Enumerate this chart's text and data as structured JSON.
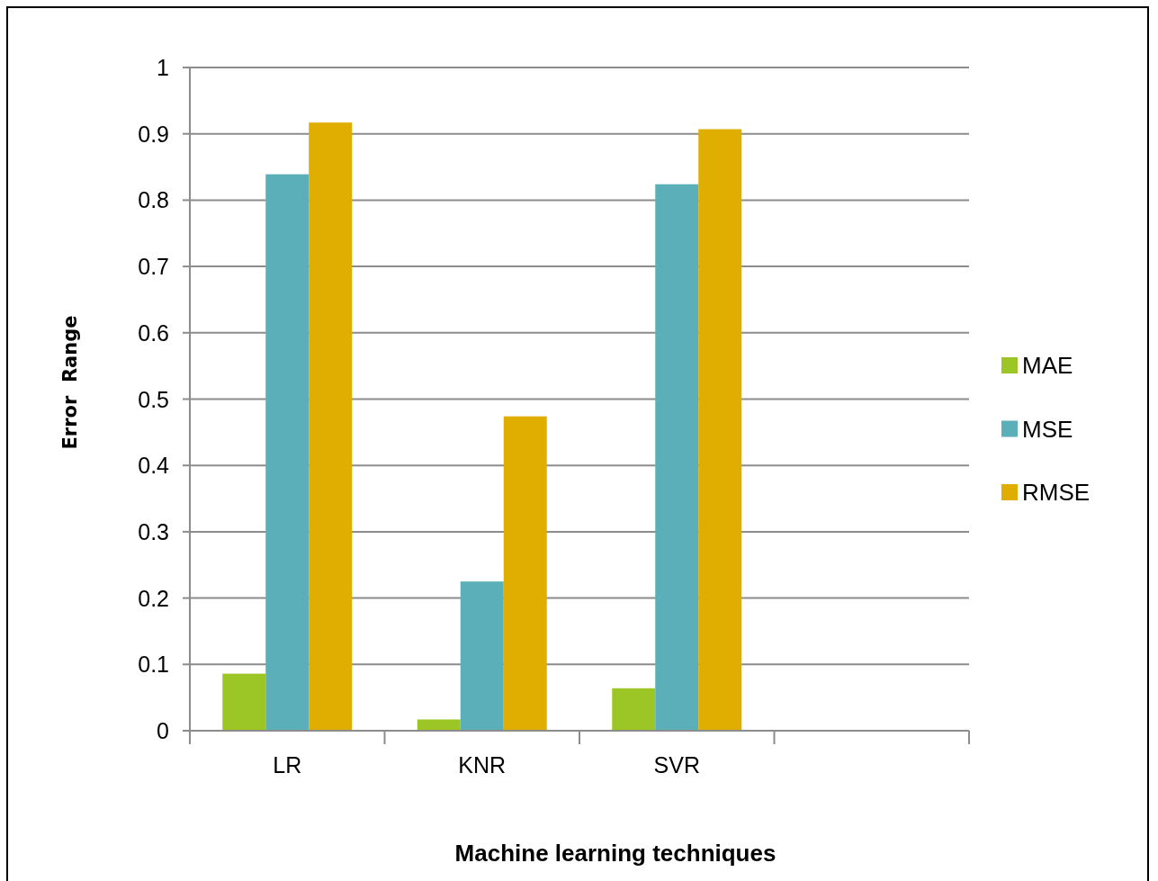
{
  "chart_data": {
    "type": "bar",
    "categories": [
      "LR",
      "KNR",
      "SVR",
      null
    ],
    "series": [
      {
        "name": "MAE",
        "color": "#9bc625",
        "values": [
          0.086,
          0.017,
          0.064,
          null
        ]
      },
      {
        "name": "MSE",
        "color": "#5aafb9",
        "values": [
          0.839,
          0.225,
          0.824,
          null
        ]
      },
      {
        "name": "RMSE",
        "color": "#dfae00",
        "values": [
          0.917,
          0.474,
          0.907,
          null
        ]
      }
    ],
    "xlabel": "Machine learning techniques",
    "ylabel": "Error  Range",
    "ylim": [
      0,
      1
    ],
    "yticks": [
      0,
      0.1,
      0.2,
      0.3,
      0.4,
      0.5,
      0.6,
      0.7,
      0.8,
      0.9,
      1
    ],
    "grid": "y",
    "legend": "right"
  }
}
